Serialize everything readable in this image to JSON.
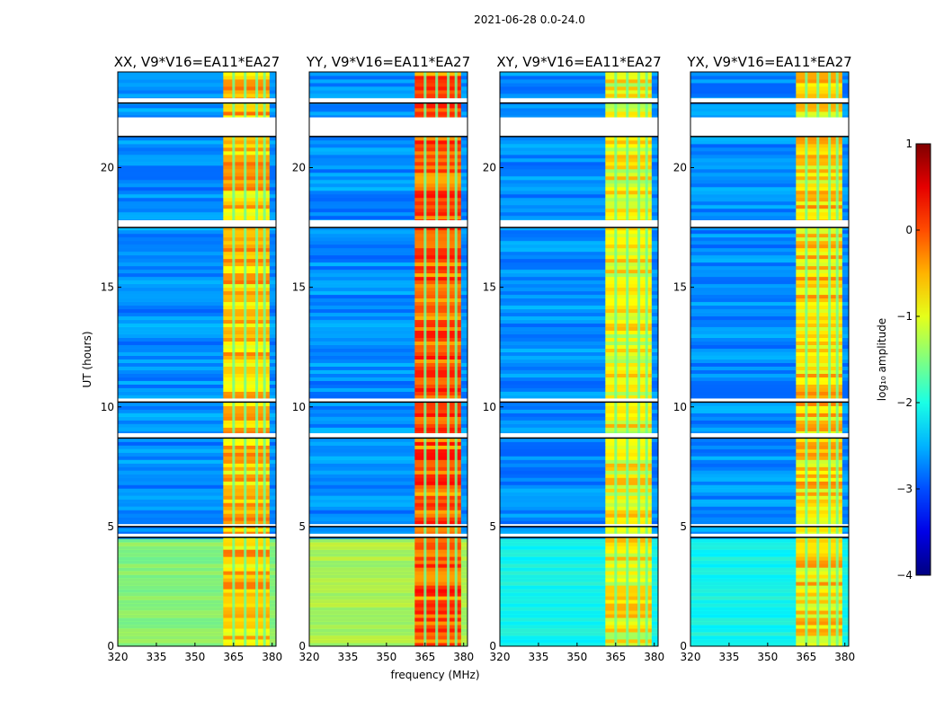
{
  "chart_data": {
    "type": "heatmap",
    "suptitle": "2021-06-28 0.0-24.0",
    "xlabel": "frequency (MHz)",
    "ylabel": "UT (hours)",
    "xlim": [
      320,
      381.5
    ],
    "ylim": [
      0,
      24
    ],
    "x_ticks": [
      "320",
      "335",
      "350",
      "365",
      "380"
    ],
    "x_tick_values": [
      320,
      335,
      350,
      365,
      380
    ],
    "y_ticks": [
      "0",
      "5",
      "10",
      "15",
      "20"
    ],
    "y_tick_values": [
      0,
      5,
      10,
      15,
      20
    ],
    "panels": [
      {
        "title": "XX, V9*V16=EA11*EA27",
        "rfi_band_level": -0.6,
        "low_band_level": -1.4
      },
      {
        "title": "YY, V9*V16=EA11*EA27",
        "rfi_band_level": -0.1,
        "low_band_level": -1.2
      },
      {
        "title": "XY, V9*V16=EA11*EA27",
        "rfi_band_level": -0.9,
        "low_band_level": -2.0
      },
      {
        "title": "YX, V9*V16=EA11*EA27",
        "rfi_band_level": -0.7,
        "low_band_level": -2.0
      }
    ],
    "rfi_band_mhz": [
      361,
      379
    ],
    "rfi_gaps_mhz": [
      364.5,
      369,
      373.5,
      376.5
    ],
    "flagged_ut_ranges": [
      [
        22.7,
        22.9
      ],
      [
        21.3,
        22.1
      ],
      [
        17.5,
        17.8
      ],
      [
        10.2,
        10.35
      ],
      [
        8.7,
        8.9
      ],
      [
        5.0,
        5.1
      ],
      [
        4.55,
        4.7
      ]
    ],
    "colorbar": {
      "label": "log₁₀ amplitude",
      "range": [
        -4,
        1
      ],
      "ticks": [
        "−4",
        "−3",
        "−2",
        "−1",
        "0",
        "1"
      ],
      "tick_values": [
        -4,
        -3,
        -2,
        -1,
        0,
        1
      ],
      "colormap": "jet"
    }
  }
}
